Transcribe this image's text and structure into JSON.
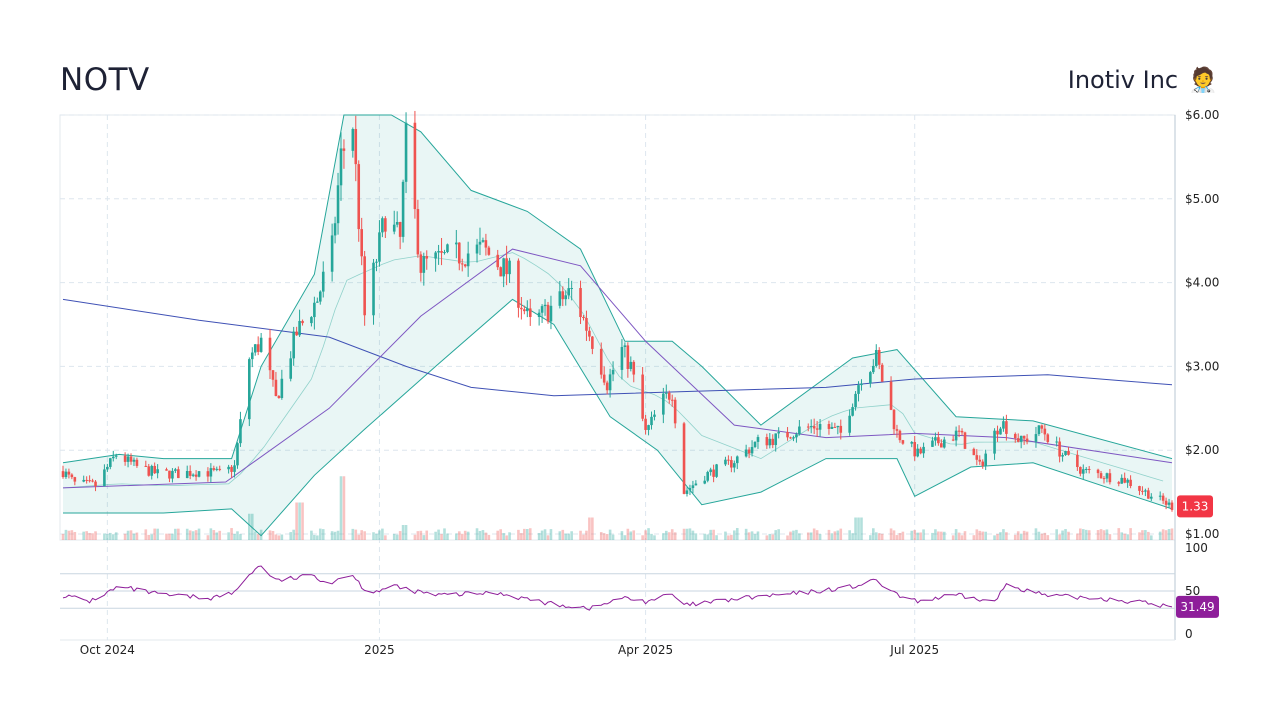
{
  "header": {
    "ticker": "NOTV",
    "company": "Inotiv Inc",
    "company_icon": "🧑‍⚕️"
  },
  "chart_data": {
    "type": "candlestick",
    "price_axis": {
      "ticks": [
        {
          "value": 6,
          "label": "$6.00"
        },
        {
          "value": 5,
          "label": "$5.00"
        },
        {
          "value": 4,
          "label": "$4.00"
        },
        {
          "value": 3,
          "label": "$3.00"
        },
        {
          "value": 2,
          "label": "$2.00"
        },
        {
          "value": 1,
          "label": "$1.00"
        }
      ],
      "range": [
        1,
        6
      ]
    },
    "rsi_axis": {
      "ticks": [
        {
          "value": 100,
          "label": "100"
        },
        {
          "value": 50,
          "label": "50"
        },
        {
          "value": 0,
          "label": "0"
        }
      ],
      "range": [
        0,
        100
      ],
      "guides": [
        70,
        50,
        30
      ]
    },
    "x_axis": {
      "range": [
        "2024-09-16",
        "2025-09-26"
      ],
      "ticks": [
        {
          "date": "2024-10-01",
          "label": "Oct 2024"
        },
        {
          "date": "2025-01-01",
          "label": "2025"
        },
        {
          "date": "2025-04-01",
          "label": "Apr 2025"
        },
        {
          "date": "2025-07-01",
          "label": "Jul 2025"
        }
      ]
    },
    "last_price": {
      "value": 1.33,
      "label": "1.33",
      "color": "#f23645"
    },
    "last_rsi": {
      "value": 31.49,
      "label": "31.49",
      "color": "#8e1e9a"
    },
    "colors": {
      "up": "#26a69a",
      "down": "#ef5350",
      "rsi": "#8e1e9a",
      "ma_long": "#3f51b5",
      "ma_mid": "#7e57c2",
      "band": "#26a69a"
    },
    "close_path": [
      [
        "2024-09-16",
        1.75
      ],
      [
        "2024-09-20",
        1.6
      ],
      [
        "2024-09-27",
        1.58
      ],
      [
        "2024-10-04",
        1.95
      ],
      [
        "2024-10-11",
        1.8
      ],
      [
        "2024-10-18",
        1.72
      ],
      [
        "2024-10-25",
        1.72
      ],
      [
        "2024-11-01",
        1.75
      ],
      [
        "2024-11-08",
        1.72
      ],
      [
        "2024-11-13",
        1.8
      ],
      [
        "2024-11-18",
        3.1
      ],
      [
        "2024-11-22",
        3.3
      ],
      [
        "2024-11-27",
        2.6
      ],
      [
        "2024-12-04",
        3.4
      ],
      [
        "2024-12-11",
        3.8
      ],
      [
        "2024-12-16",
        4.4
      ],
      [
        "2024-12-19",
        5.5
      ],
      [
        "2024-12-23",
        5.9
      ],
      [
        "2024-12-27",
        3.6
      ],
      [
        "2025-01-03",
        4.8
      ],
      [
        "2025-01-08",
        4.5
      ],
      [
        "2025-01-10",
        5.7
      ],
      [
        "2025-01-15",
        4.2
      ],
      [
        "2025-01-24",
        4.3
      ],
      [
        "2025-02-05",
        4.4
      ],
      [
        "2025-02-14",
        4.1
      ],
      [
        "2025-02-21",
        3.5
      ],
      [
        "2025-02-28",
        3.7
      ],
      [
        "2025-03-07",
        3.9
      ],
      [
        "2025-03-14",
        3.3
      ],
      [
        "2025-03-19",
        2.8
      ],
      [
        "2025-03-24",
        3.2
      ],
      [
        "2025-03-27",
        3.0
      ],
      [
        "2025-04-01",
        2.2
      ],
      [
        "2025-04-07",
        2.6
      ],
      [
        "2025-04-10",
        2.7
      ],
      [
        "2025-04-14",
        1.5
      ],
      [
        "2025-04-21",
        1.7
      ],
      [
        "2025-04-30",
        1.85
      ],
      [
        "2025-05-09",
        2.1
      ],
      [
        "2025-05-16",
        2.15
      ],
      [
        "2025-05-23",
        2.25
      ],
      [
        "2025-05-30",
        2.3
      ],
      [
        "2025-06-06",
        2.2
      ],
      [
        "2025-06-10",
        2.6
      ],
      [
        "2025-06-13",
        2.9
      ],
      [
        "2025-06-18",
        3.1
      ],
      [
        "2025-06-25",
        2.2
      ],
      [
        "2025-07-02",
        1.95
      ],
      [
        "2025-07-09",
        2.1
      ],
      [
        "2025-07-16",
        2.2
      ],
      [
        "2025-07-23",
        1.8
      ],
      [
        "2025-07-30",
        2.35
      ],
      [
        "2025-08-06",
        2.1
      ],
      [
        "2025-08-13",
        2.25
      ],
      [
        "2025-08-20",
        1.95
      ],
      [
        "2025-08-27",
        1.75
      ],
      [
        "2025-09-03",
        1.7
      ],
      [
        "2025-09-10",
        1.65
      ],
      [
        "2025-09-17",
        1.5
      ],
      [
        "2025-09-26",
        1.33
      ]
    ],
    "ma_long": [
      [
        "2024-09-16",
        3.8
      ],
      [
        "2024-11-01",
        3.55
      ],
      [
        "2024-12-15",
        3.35
      ],
      [
        "2025-01-10",
        3.0
      ],
      [
        "2025-02-01",
        2.75
      ],
      [
        "2025-03-01",
        2.65
      ],
      [
        "2025-04-15",
        2.7
      ],
      [
        "2025-06-01",
        2.75
      ],
      [
        "2025-07-01",
        2.85
      ],
      [
        "2025-08-15",
        2.9
      ],
      [
        "2025-09-26",
        2.78
      ]
    ],
    "ma_mid": [
      [
        "2024-09-16",
        1.55
      ],
      [
        "2024-11-10",
        1.62
      ],
      [
        "2024-12-15",
        2.5
      ],
      [
        "2025-01-15",
        3.6
      ],
      [
        "2025-02-15",
        4.4
      ],
      [
        "2025-03-10",
        4.2
      ],
      [
        "2025-04-01",
        3.3
      ],
      [
        "2025-05-01",
        2.3
      ],
      [
        "2025-06-01",
        2.15
      ],
      [
        "2025-07-01",
        2.2
      ],
      [
        "2025-08-01",
        2.15
      ],
      [
        "2025-09-26",
        1.85
      ]
    ],
    "band_upper": [
      [
        "2024-09-16",
        1.85
      ],
      [
        "2024-10-05",
        1.95
      ],
      [
        "2024-10-20",
        1.9
      ],
      [
        "2024-11-12",
        1.9
      ],
      [
        "2024-11-22",
        3.0
      ],
      [
        "2024-12-10",
        4.1
      ],
      [
        "2024-12-20",
        6.0
      ],
      [
        "2025-01-05",
        6.0
      ],
      [
        "2025-01-15",
        5.8
      ],
      [
        "2025-02-01",
        5.1
      ],
      [
        "2025-02-20",
        4.85
      ],
      [
        "2025-03-10",
        4.4
      ],
      [
        "2025-03-25",
        3.3
      ],
      [
        "2025-04-10",
        3.3
      ],
      [
        "2025-04-20",
        3.0
      ],
      [
        "2025-05-10",
        2.3
      ],
      [
        "2025-06-10",
        3.1
      ],
      [
        "2025-06-25",
        3.2
      ],
      [
        "2025-07-15",
        2.4
      ],
      [
        "2025-08-10",
        2.35
      ],
      [
        "2025-09-26",
        1.9
      ]
    ],
    "band_lower": [
      [
        "2024-09-16",
        1.25
      ],
      [
        "2024-10-20",
        1.25
      ],
      [
        "2024-11-12",
        1.3
      ],
      [
        "2024-11-22",
        0.98
      ],
      [
        "2024-12-10",
        1.7
      ],
      [
        "2024-12-27",
        2.25
      ],
      [
        "2025-01-20",
        3.0
      ],
      [
        "2025-02-15",
        3.8
      ],
      [
        "2025-03-01",
        3.5
      ],
      [
        "2025-03-20",
        2.4
      ],
      [
        "2025-04-05",
        2.0
      ],
      [
        "2025-04-20",
        1.35
      ],
      [
        "2025-05-10",
        1.5
      ],
      [
        "2025-06-01",
        1.9
      ],
      [
        "2025-06-25",
        1.9
      ],
      [
        "2025-07-01",
        1.45
      ],
      [
        "2025-07-20",
        1.8
      ],
      [
        "2025-08-10",
        1.85
      ],
      [
        "2025-09-26",
        1.3
      ]
    ],
    "rsi_path": [
      [
        "2024-09-16",
        45
      ],
      [
        "2024-09-25",
        38
      ],
      [
        "2024-10-05",
        55
      ],
      [
        "2024-10-20",
        45
      ],
      [
        "2024-11-05",
        42
      ],
      [
        "2024-11-13",
        48
      ],
      [
        "2024-11-18",
        70
      ],
      [
        "2024-11-22",
        80
      ],
      [
        "2024-11-27",
        62
      ],
      [
        "2024-12-10",
        68
      ],
      [
        "2024-12-15",
        58
      ],
      [
        "2024-12-22",
        72
      ],
      [
        "2024-12-28",
        48
      ],
      [
        "2025-01-06",
        55
      ],
      [
        "2025-01-20",
        45
      ],
      [
        "2025-02-10",
        48
      ],
      [
        "2025-02-28",
        35
      ],
      [
        "2025-03-14",
        30
      ],
      [
        "2025-03-24",
        42
      ],
      [
        "2025-04-01",
        38
      ],
      [
        "2025-04-10",
        46
      ],
      [
        "2025-04-14",
        33
      ],
      [
        "2025-05-05",
        42
      ],
      [
        "2025-05-25",
        48
      ],
      [
        "2025-06-10",
        55
      ],
      [
        "2025-06-18",
        62
      ],
      [
        "2025-06-25",
        45
      ],
      [
        "2025-07-01",
        38
      ],
      [
        "2025-07-15",
        45
      ],
      [
        "2025-07-28",
        37
      ],
      [
        "2025-08-01",
        58
      ],
      [
        "2025-08-15",
        44
      ],
      [
        "2025-09-01",
        42
      ],
      [
        "2025-09-15",
        37
      ],
      [
        "2025-09-26",
        31.49
      ]
    ],
    "volume_spikes": [
      [
        "2024-11-18",
        0.35
      ],
      [
        "2024-12-05",
        0.5
      ],
      [
        "2024-12-20",
        0.85
      ],
      [
        "2025-01-10",
        0.2
      ],
      [
        "2025-03-14",
        0.3
      ],
      [
        "2025-04-14",
        0.15
      ],
      [
        "2025-06-12",
        0.3
      ]
    ]
  }
}
